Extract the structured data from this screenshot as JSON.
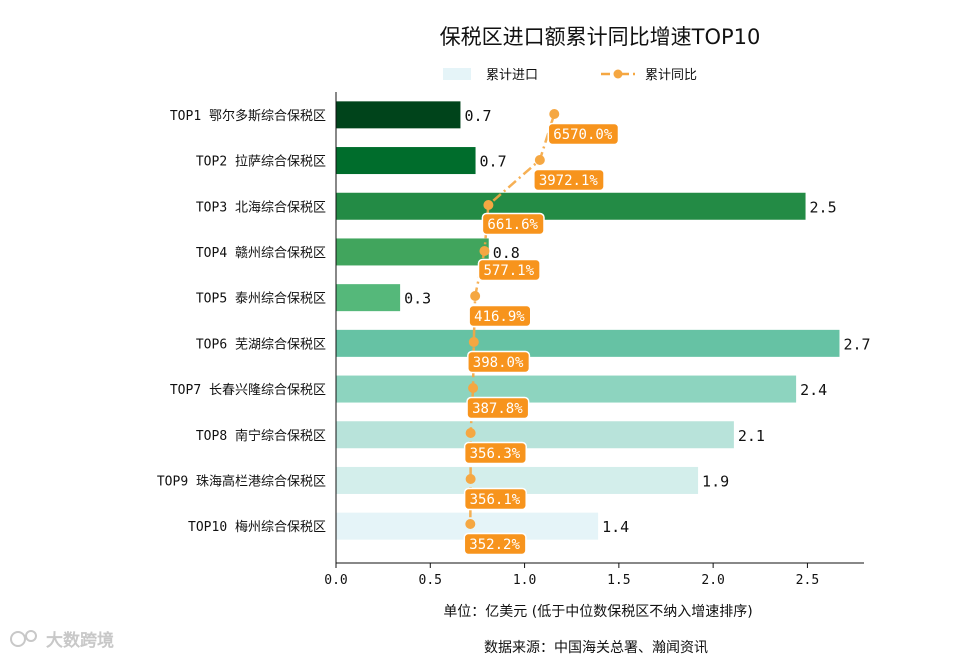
{
  "chart_data": {
    "type": "bar",
    "orientation": "horizontal",
    "title": "保税区进口额累计同比增速TOP10",
    "categories": [
      "TOP1 鄂尔多斯综合保税区",
      "TOP2 拉萨综合保税区",
      "TOP3 北海综合保税区",
      "TOP4 赣州综合保税区",
      "TOP5 泰州综合保税区",
      "TOP6 芜湖综合保税区",
      "TOP7 长春兴隆综合保税区",
      "TOP8 南宁综合保税区",
      "TOP9 珠海高栏港综合保税区",
      "TOP10 梅州综合保税区"
    ],
    "series": [
      {
        "name": "累计进口",
        "type": "bar",
        "values": [
          0.66,
          0.74,
          2.49,
          0.81,
          0.34,
          2.67,
          2.44,
          2.11,
          1.92,
          1.39
        ],
        "labels": [
          "0.7",
          "0.7",
          "2.5",
          "0.8",
          "0.3",
          "2.7",
          "2.4",
          "2.1",
          "1.9",
          "1.4"
        ],
        "colors": [
          "#00441b",
          "#006d2c",
          "#238b45",
          "#41a55d",
          "#55b87a",
          "#66c2a4",
          "#8dd4bf",
          "#b8e3da",
          "#d3eeeb",
          "#e5f4f8"
        ]
      },
      {
        "name": "累计同比",
        "type": "line",
        "values": [
          6570.0,
          3972.1,
          661.6,
          577.1,
          416.9,
          398.0,
          387.8,
          356.3,
          356.1,
          352.2
        ],
        "labels": [
          "6570.0%",
          "3972.1%",
          "661.6%",
          "577.1%",
          "416.9%",
          "398.0%",
          "387.8%",
          "356.3%",
          "356.1%",
          "352.2%"
        ],
        "color": "#f5a742",
        "label_color": "#f7941d"
      }
    ],
    "xlim": [
      0,
      2.8
    ],
    "xticks": [
      0.0,
      0.5,
      1.0,
      1.5,
      2.0,
      2.5
    ],
    "xtick_labels": [
      "0.0",
      "0.5",
      "1.0",
      "1.5",
      "2.0",
      "2.5"
    ],
    "legend_position": "top-center",
    "unit_note": "单位：亿美元 (低于中位数保税区不纳入增速排序)",
    "source": "数据来源：中国海关总署、瀚闻资讯",
    "watermark": "大数跨境"
  }
}
